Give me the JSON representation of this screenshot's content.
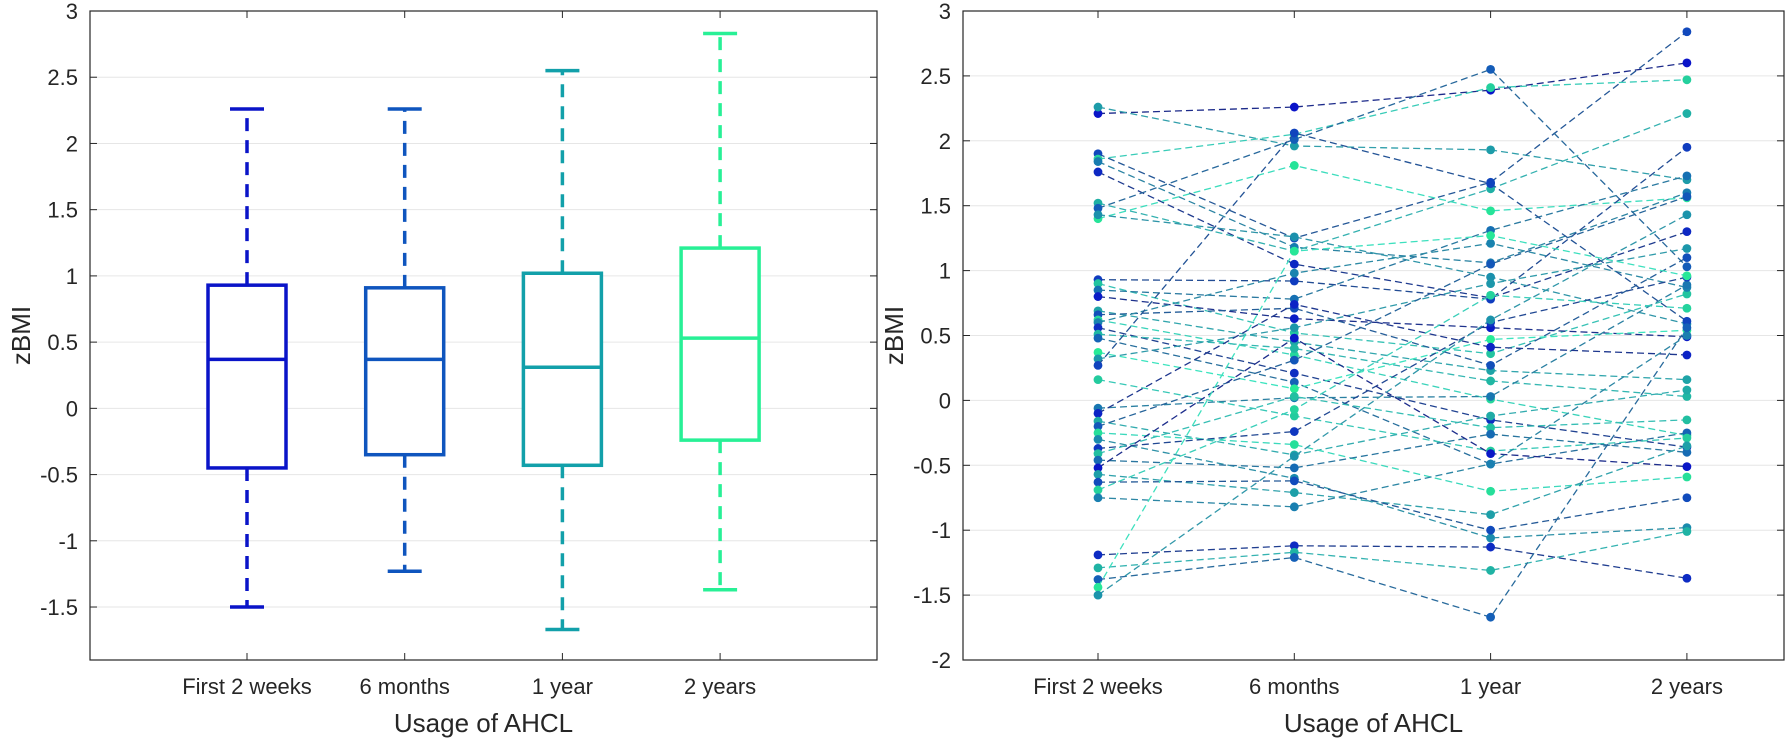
{
  "chart_data": [
    {
      "type": "box",
      "categories": [
        "First 2 weeks",
        "6 months",
        "1 year",
        "2 years"
      ],
      "boxes": [
        {
          "category": "First 2 weeks",
          "min": -1.5,
          "q1": -0.45,
          "median": 0.37,
          "q3": 0.93,
          "max": 2.26,
          "color": "#0a14c8"
        },
        {
          "category": "6 months",
          "min": -1.23,
          "q1": -0.35,
          "median": 0.37,
          "q3": 0.91,
          "max": 2.26,
          "color": "#0f55be"
        },
        {
          "category": "1 year",
          "min": -1.67,
          "q1": -0.43,
          "median": 0.31,
          "q3": 1.02,
          "max": 2.55,
          "color": "#12a0aa"
        },
        {
          "category": "2 years",
          "min": -1.37,
          "q1": -0.24,
          "median": 0.53,
          "q3": 1.21,
          "max": 2.83,
          "color": "#28f096"
        }
      ],
      "xlabel": "Usage of AHCL",
      "ylabel": "zBMI",
      "ylim": [
        -1.9,
        3
      ],
      "yticks": [
        -1.5,
        -1,
        -0.5,
        0,
        0.5,
        1,
        1.5,
        2,
        2.5,
        3
      ],
      "ytick_labels": [
        "-1.5",
        "-1",
        "-0.5",
        "0",
        "0.5",
        "1",
        "1.5",
        "2",
        "2.5",
        "3"
      ],
      "grid": true
    },
    {
      "type": "line",
      "categories": [
        "First 2 weeks",
        "6 months",
        "1 year",
        "2 years"
      ],
      "xlabel": "Usage of AHCL",
      "ylabel": "zBMI",
      "ylim": [
        -2,
        3
      ],
      "yticks": [
        -2,
        -1.5,
        -1,
        -0.5,
        0,
        0.5,
        1,
        1.5,
        2,
        2.5,
        3
      ],
      "ytick_labels": [
        "-2",
        "-1.5",
        "-1",
        "-0.5",
        "0",
        "0.5",
        "1",
        "1.5",
        "2",
        "2.5",
        "3"
      ],
      "grid": true,
      "series": [
        {
          "values": [
            2.21,
            2.26,
            2.39,
            2.6
          ]
        },
        {
          "values": [
            2.26,
            1.96,
            1.93,
            1.7
          ]
        },
        {
          "values": [
            1.9,
            1.25,
            1.68,
            2.84
          ]
        },
        {
          "values": [
            1.86,
            2.05,
            2.41,
            2.47
          ]
        },
        {
          "values": [
            1.84,
            1.18,
            1.06,
            1.6
          ]
        },
        {
          "values": [
            1.76,
            1.05,
            0.79,
            1.3
          ]
        },
        {
          "values": [
            1.52,
            1.15,
            1.63,
            2.21
          ]
        },
        {
          "values": [
            1.48,
            2.01,
            2.55,
            1.03
          ]
        },
        {
          "values": [
            1.4,
            1.81,
            1.46,
            1.56
          ]
        },
        {
          "values": [
            1.43,
            1.26,
            0.95,
            0.59
          ]
        },
        {
          "values": [
            0.93,
            0.92,
            0.78,
            1.95
          ]
        },
        {
          "values": [
            0.9,
            0.52,
            0.36,
            0.82
          ]
        },
        {
          "values": [
            0.85,
            0.78,
            1.31,
            1.73
          ]
        },
        {
          "values": [
            0.8,
            0.63,
            0.56,
            0.49
          ]
        },
        {
          "values": [
            0.69,
            0.45,
            0.23,
            0.16
          ]
        },
        {
          "values": [
            0.66,
            0.71,
            0.27,
            1.1
          ]
        },
        {
          "values": [
            0.62,
            0.35,
            0.01,
            -0.27
          ]
        },
        {
          "values": [
            0.6,
            0.98,
            1.21,
            0.87
          ]
        },
        {
          "values": [
            0.56,
            0.21,
            -0.15,
            -0.36
          ]
        },
        {
          "values": [
            0.51,
            0.4,
            0.15,
            0.03
          ]
        },
        {
          "values": [
            0.48,
            0.14,
            -0.49,
            -0.25
          ]
        },
        {
          "values": [
            0.37,
            0.09,
            0.47,
            0.54
          ]
        },
        {
          "values": [
            0.32,
            0.56,
            0.9,
            1.17
          ]
        },
        {
          "values": [
            0.27,
            2.06,
            1.67,
            0.61
          ]
        },
        {
          "values": [
            0.16,
            -0.12,
            -0.39,
            -0.29
          ]
        },
        {
          "values": [
            -0.06,
            0.02,
            0.03,
            0.89
          ]
        },
        {
          "values": [
            -0.1,
            0.74,
            0.41,
            0.35
          ]
        },
        {
          "values": [
            -0.16,
            -0.42,
            -0.12,
            0.08
          ]
        },
        {
          "values": [
            -0.2,
            0.31,
            1.05,
            1.57
          ]
        },
        {
          "values": [
            -0.25,
            -0.34,
            -0.7,
            -0.59
          ]
        },
        {
          "values": [
            -0.3,
            -0.6,
            -1.06,
            -0.98
          ]
        },
        {
          "values": [
            -0.37,
            -0.24,
            0.6,
            0.95
          ]
        },
        {
          "values": [
            -0.41,
            0.03,
            -0.21,
            -0.15
          ]
        },
        {
          "values": [
            -0.46,
            -0.52,
            -0.26,
            -0.4
          ]
        },
        {
          "values": [
            -0.52,
            0.48,
            -0.41,
            -0.51
          ]
        },
        {
          "values": [
            -0.57,
            -0.71,
            -0.88,
            -0.35
          ]
        },
        {
          "values": [
            -0.63,
            -0.62,
            -1.0,
            -0.75
          ]
        },
        {
          "values": [
            -0.69,
            -0.07,
            0.81,
            0.71
          ]
        },
        {
          "values": [
            -0.75,
            -0.82,
            -0.49,
            0.5
          ]
        },
        {
          "values": [
            -1.19,
            -1.12,
            -1.13,
            -1.37
          ]
        },
        {
          "values": [
            -1.29,
            -1.17,
            -1.31,
            -1.01
          ]
        },
        {
          "values": [
            -1.38,
            -1.21,
            -1.67,
            0.56
          ]
        },
        {
          "values": [
            -1.44,
            1.15,
            1.27,
            0.96
          ]
        },
        {
          "values": [
            -1.5,
            -0.43,
            0.62,
            1.43
          ]
        }
      ]
    }
  ]
}
